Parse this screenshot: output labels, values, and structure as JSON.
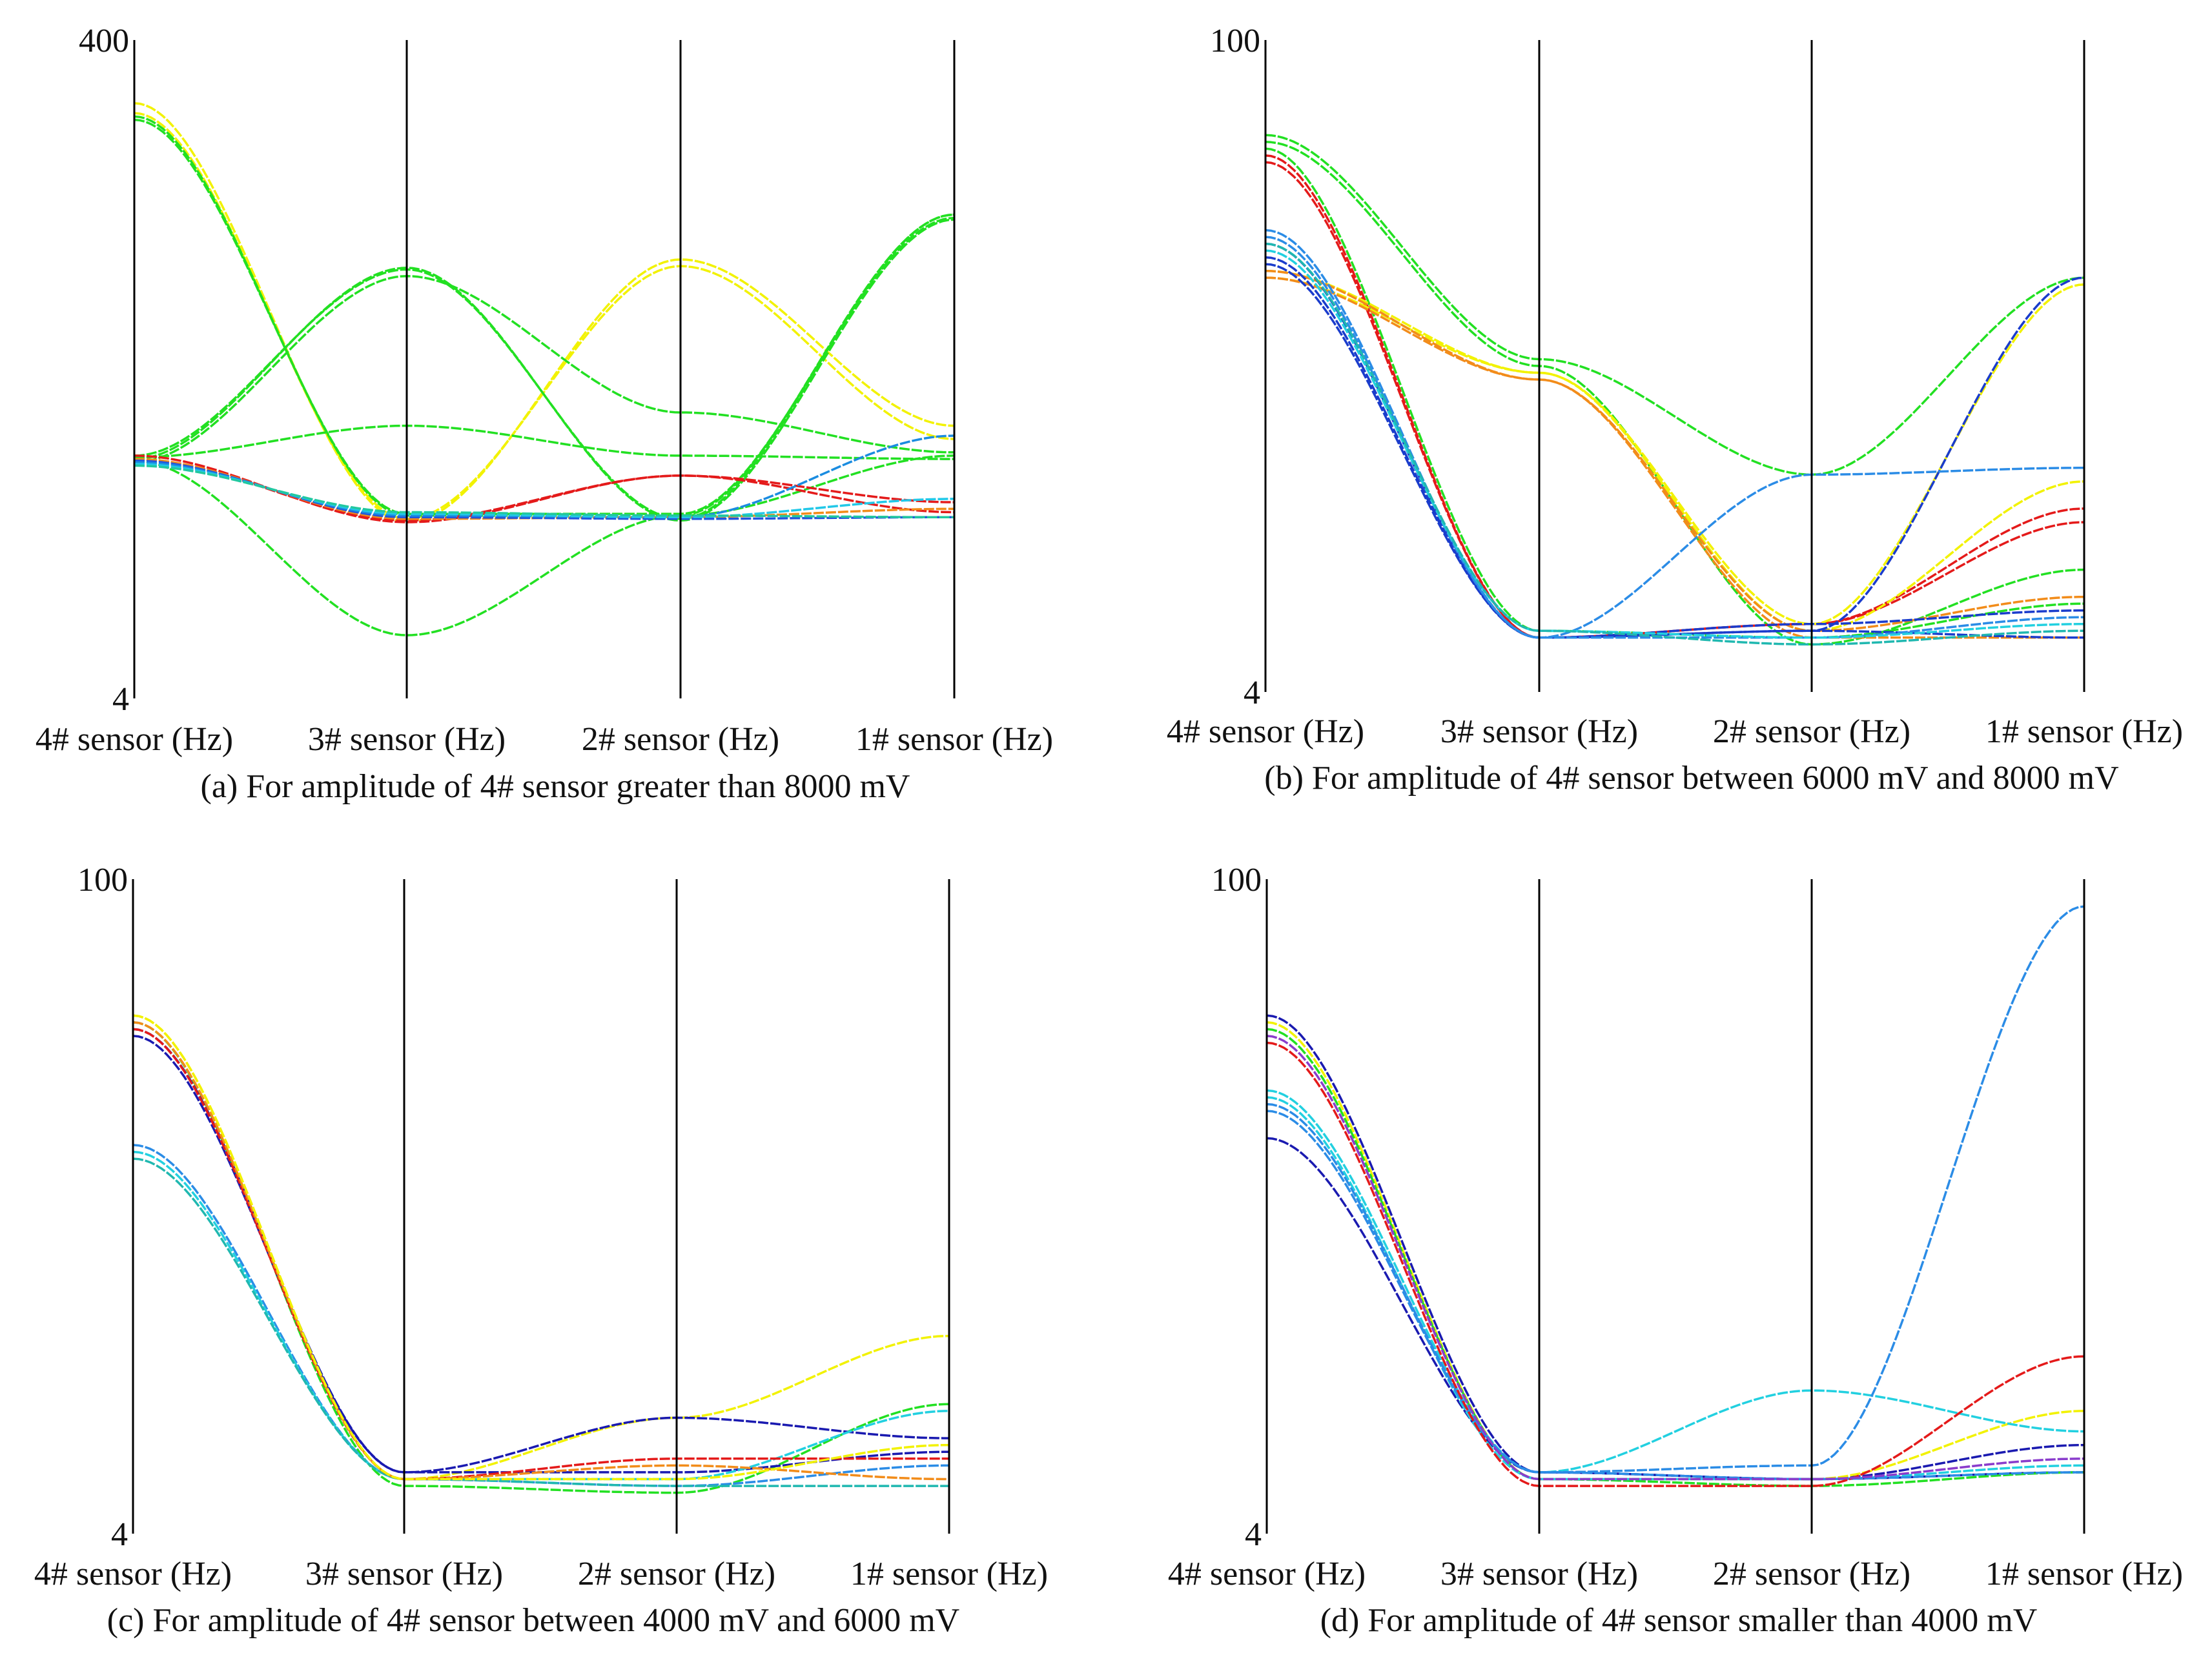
{
  "figure": {
    "panels_count": 4
  },
  "chart_data": [
    {
      "id": "a",
      "type": "line",
      "subtype": "parallel-coordinates",
      "caption": "(a) For amplitude of 4# sensor greater than 8000 mV",
      "axes": [
        "4# sensor (Hz)",
        "3# sensor (Hz)",
        "2# sensor (Hz)",
        "1# sensor (Hz)"
      ],
      "ylim": [
        4,
        400
      ],
      "y_tick_labels": [
        "400",
        "4"
      ],
      "series": [
        {
          "name": "yellow-1",
          "color": "#f2f200",
          "values": [
            362,
            110,
            268,
            168
          ]
        },
        {
          "name": "yellow-2",
          "color": "#f2f200",
          "values": [
            356,
            112,
            264,
            160
          ]
        },
        {
          "name": "green-1",
          "color": "#22e022",
          "values": [
            354,
            114,
            114,
            295
          ]
        },
        {
          "name": "green-2",
          "color": "#22e022",
          "values": [
            352,
            115,
            115,
            293
          ]
        },
        {
          "name": "green-3",
          "color": "#22e022",
          "values": [
            148,
            263,
            111,
            292
          ]
        },
        {
          "name": "green-4",
          "color": "#22e022",
          "values": [
            150,
            262,
            112,
            295
          ]
        },
        {
          "name": "green-5",
          "color": "#22e022",
          "values": [
            146,
            258,
            176,
            152
          ]
        },
        {
          "name": "green-6",
          "color": "#22e022",
          "values": [
            149,
            168,
            150,
            148
          ]
        },
        {
          "name": "green-7",
          "color": "#22e022",
          "values": [
            147,
            42,
            114,
            150
          ]
        },
        {
          "name": "red-1",
          "color": "#e41a1a",
          "values": [
            150,
            110,
            138,
            122
          ]
        },
        {
          "name": "red-2",
          "color": "#e41a1a",
          "values": [
            148,
            111,
            138,
            116
          ]
        },
        {
          "name": "orange-1",
          "color": "#f28c1a",
          "values": [
            148,
            112,
            113,
            118
          ]
        },
        {
          "name": "blue-1",
          "color": "#2255dd",
          "values": [
            147,
            113,
            112,
            113
          ]
        },
        {
          "name": "blue-2",
          "color": "#1a8ce0",
          "values": [
            146,
            114,
            113,
            162
          ]
        },
        {
          "name": "cyan-1",
          "color": "#22c8e8",
          "values": [
            145,
            115,
            113,
            124
          ]
        },
        {
          "name": "teal-1",
          "color": "#22c8a0",
          "values": [
            144,
            116,
            114,
            113
          ]
        }
      ]
    },
    {
      "id": "b",
      "type": "line",
      "subtype": "parallel-coordinates",
      "caption": "(b) For amplitude of 4# sensor between 6000 mV and 8000 mV",
      "axes": [
        "4# sensor (Hz)",
        "3# sensor (Hz)",
        "2# sensor (Hz)",
        "1# sensor (Hz)"
      ],
      "ylim": [
        4,
        100
      ],
      "y_tick_labels": [
        "100",
        "4"
      ],
      "series": [
        {
          "name": "green-1",
          "color": "#22e022",
          "values": [
            86,
            53,
            36,
            65
          ]
        },
        {
          "name": "green-2",
          "color": "#22e022",
          "values": [
            85,
            52,
            11,
            22
          ]
        },
        {
          "name": "green-3",
          "color": "#22e022",
          "values": [
            84,
            13,
            12,
            17
          ]
        },
        {
          "name": "red-1",
          "color": "#e41a1a",
          "values": [
            83,
            12,
            14,
            31
          ]
        },
        {
          "name": "red-2",
          "color": "#e41a1a",
          "values": [
            82,
            12,
            14,
            29
          ]
        },
        {
          "name": "yellow-1",
          "color": "#f2f200",
          "values": [
            66,
            51,
            14,
            64
          ]
        },
        {
          "name": "yellow-2",
          "color": "#f2f200",
          "values": [
            65,
            51,
            13,
            35
          ]
        },
        {
          "name": "orange-1",
          "color": "#f28c1a",
          "values": [
            66,
            50,
            13,
            18
          ]
        },
        {
          "name": "orange-2",
          "color": "#f28c1a",
          "values": [
            65,
            50,
            12,
            12
          ]
        },
        {
          "name": "blue-1",
          "color": "#1a3ccc",
          "values": [
            70,
            12,
            13,
            65
          ]
        },
        {
          "name": "blue-2",
          "color": "#1a3ccc",
          "values": [
            68,
            12,
            14,
            16
          ]
        },
        {
          "name": "blue-3",
          "color": "#1a3ccc",
          "values": [
            67,
            12,
            13,
            12
          ]
        },
        {
          "name": "lightblue-1",
          "color": "#2b8ce6",
          "values": [
            72,
            12,
            36,
            37
          ]
        },
        {
          "name": "lightblue-2",
          "color": "#2b8ce6",
          "values": [
            71,
            12,
            12,
            15
          ]
        },
        {
          "name": "cyan-1",
          "color": "#22d0e0",
          "values": [
            69,
            13,
            12,
            14
          ]
        },
        {
          "name": "teal-1",
          "color": "#20b8b0",
          "values": [
            70,
            13,
            11,
            13
          ]
        }
      ]
    },
    {
      "id": "c",
      "type": "line",
      "subtype": "parallel-coordinates",
      "caption": "(c) For amplitude of 4# sensor between 4000 mV and 6000 mV",
      "axes": [
        "4# sensor (Hz)",
        "3# sensor (Hz)",
        "2# sensor (Hz)",
        "1# sensor (Hz)"
      ],
      "ylim": [
        4,
        100
      ],
      "y_tick_labels": [
        "100",
        "4"
      ],
      "series": [
        {
          "name": "yellow-1",
          "color": "#f2f200",
          "values": [
            80,
            12,
            21,
            33
          ]
        },
        {
          "name": "green-1",
          "color": "#22e022",
          "values": [
            79,
            11,
            10,
            23
          ]
        },
        {
          "name": "darkblue-1",
          "color": "#1a1ab0",
          "values": [
            78,
            13,
            21,
            18
          ]
        },
        {
          "name": "darkblue-2",
          "color": "#1a1ab0",
          "values": [
            77,
            13,
            13,
            16
          ]
        },
        {
          "name": "lightblue-1",
          "color": "#2b8ce6",
          "values": [
            61,
            12,
            11,
            14
          ]
        },
        {
          "name": "cyan-1",
          "color": "#22d0e0",
          "values": [
            60,
            12,
            12,
            22
          ]
        },
        {
          "name": "teal-1",
          "color": "#20b8b0",
          "values": [
            59,
            12,
            11,
            11
          ]
        },
        {
          "name": "red-1",
          "color": "#e41a1a",
          "values": [
            78,
            12,
            15,
            15
          ]
        },
        {
          "name": "orange-1",
          "color": "#f28c1a",
          "values": [
            79,
            12,
            14,
            12
          ]
        },
        {
          "name": "yellow-2",
          "color": "#f2f200",
          "values": [
            80,
            12,
            12,
            17
          ]
        }
      ]
    },
    {
      "id": "d",
      "type": "line",
      "subtype": "parallel-coordinates",
      "caption": "(d) For amplitude of 4# sensor smaller than 4000 mV",
      "axes": [
        "4# sensor (Hz)",
        "3# sensor (Hz)",
        "2# sensor (Hz)",
        "1# sensor (Hz)"
      ],
      "ylim": [
        4,
        100
      ],
      "y_tick_labels": [
        "100",
        "4"
      ],
      "series": [
        {
          "name": "darkblue-1",
          "color": "#1a1ab0",
          "values": [
            80,
            13,
            12,
            17
          ]
        },
        {
          "name": "darkblue-2",
          "color": "#1a1ab0",
          "values": [
            62,
            13,
            12,
            13
          ]
        },
        {
          "name": "yellow-1",
          "color": "#f2f200",
          "values": [
            79,
            12,
            12,
            22
          ]
        },
        {
          "name": "green-1",
          "color": "#22e022",
          "values": [
            78,
            12,
            11,
            13
          ]
        },
        {
          "name": "cyan-1",
          "color": "#22d0e0",
          "values": [
            69,
            13,
            25,
            19
          ]
        },
        {
          "name": "cyan-2",
          "color": "#22d0e0",
          "values": [
            68,
            12,
            12,
            14
          ]
        },
        {
          "name": "lightblue-1",
          "color": "#2b8ce6",
          "values": [
            66,
            13,
            14,
            96
          ]
        },
        {
          "name": "lightblue-2",
          "color": "#2b8ce6",
          "values": [
            67,
            13,
            12,
            13
          ]
        },
        {
          "name": "red-1",
          "color": "#e41a1a",
          "values": [
            76,
            11,
            11,
            30
          ]
        },
        {
          "name": "purple-1",
          "color": "#8a3ccc",
          "values": [
            77,
            12,
            12,
            15
          ]
        }
      ]
    }
  ]
}
